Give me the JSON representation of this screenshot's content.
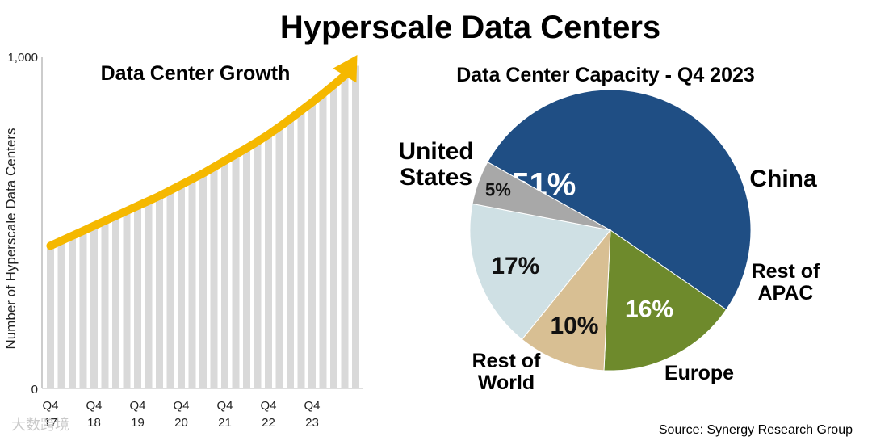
{
  "title": "Hyperscale Data Centers",
  "source": "Source: Synergy Research Group",
  "watermark": "大数跨境",
  "colors": {
    "bar": "#d9d9d9",
    "arrow": "#f5b800",
    "us": "#1f4e84",
    "china": "#6e8a2c",
    "apac": "#d8bf93",
    "europe": "#cfe0e4",
    "row": "#a8a8a8"
  },
  "chart_data": [
    {
      "type": "bar",
      "title": "Data Center Growth",
      "ylabel": "Number of Hyperscale Data Centers",
      "ylim": [
        0,
        1000
      ],
      "y_ticks": [
        "0",
        "1,000"
      ],
      "x_tick_labels": [
        {
          "q": "Q4",
          "y": "17"
        },
        {
          "q": "Q4",
          "y": "18"
        },
        {
          "q": "Q4",
          "y": "19"
        },
        {
          "q": "Q4",
          "y": "20"
        },
        {
          "q": "Q4",
          "y": "21"
        },
        {
          "q": "Q4",
          "y": "22"
        },
        {
          "q": "Q4",
          "y": "23"
        }
      ],
      "values": [
        430,
        445,
        460,
        475,
        490,
        505,
        520,
        535,
        550,
        565,
        580,
        597,
        614,
        631,
        648,
        667,
        686,
        705,
        724,
        744,
        765,
        788,
        812,
        837,
        862,
        888,
        915,
        943,
        972
      ]
    },
    {
      "type": "pie",
      "title": "Data Center Capacity - Q4 2023",
      "slices": [
        {
          "name": "United States",
          "value": 51,
          "label": "51%",
          "color": "#1f4e84",
          "name_lines": [
            "United",
            "States"
          ]
        },
        {
          "name": "China",
          "value": 16,
          "label": "16%",
          "color": "#6e8a2c",
          "name_lines": [
            "China"
          ]
        },
        {
          "name": "Rest of APAC",
          "value": 10,
          "label": "10%",
          "color": "#d8bf93",
          "name_lines": [
            "Rest of",
            "APAC"
          ]
        },
        {
          "name": "Europe",
          "value": 17,
          "label": "17%",
          "color": "#cfe0e4",
          "name_lines": [
            "Europe"
          ]
        },
        {
          "name": "Rest of World",
          "value": 5,
          "label": "5%",
          "color": "#a8a8a8",
          "name_lines": [
            "Rest of",
            "World"
          ]
        }
      ]
    }
  ]
}
